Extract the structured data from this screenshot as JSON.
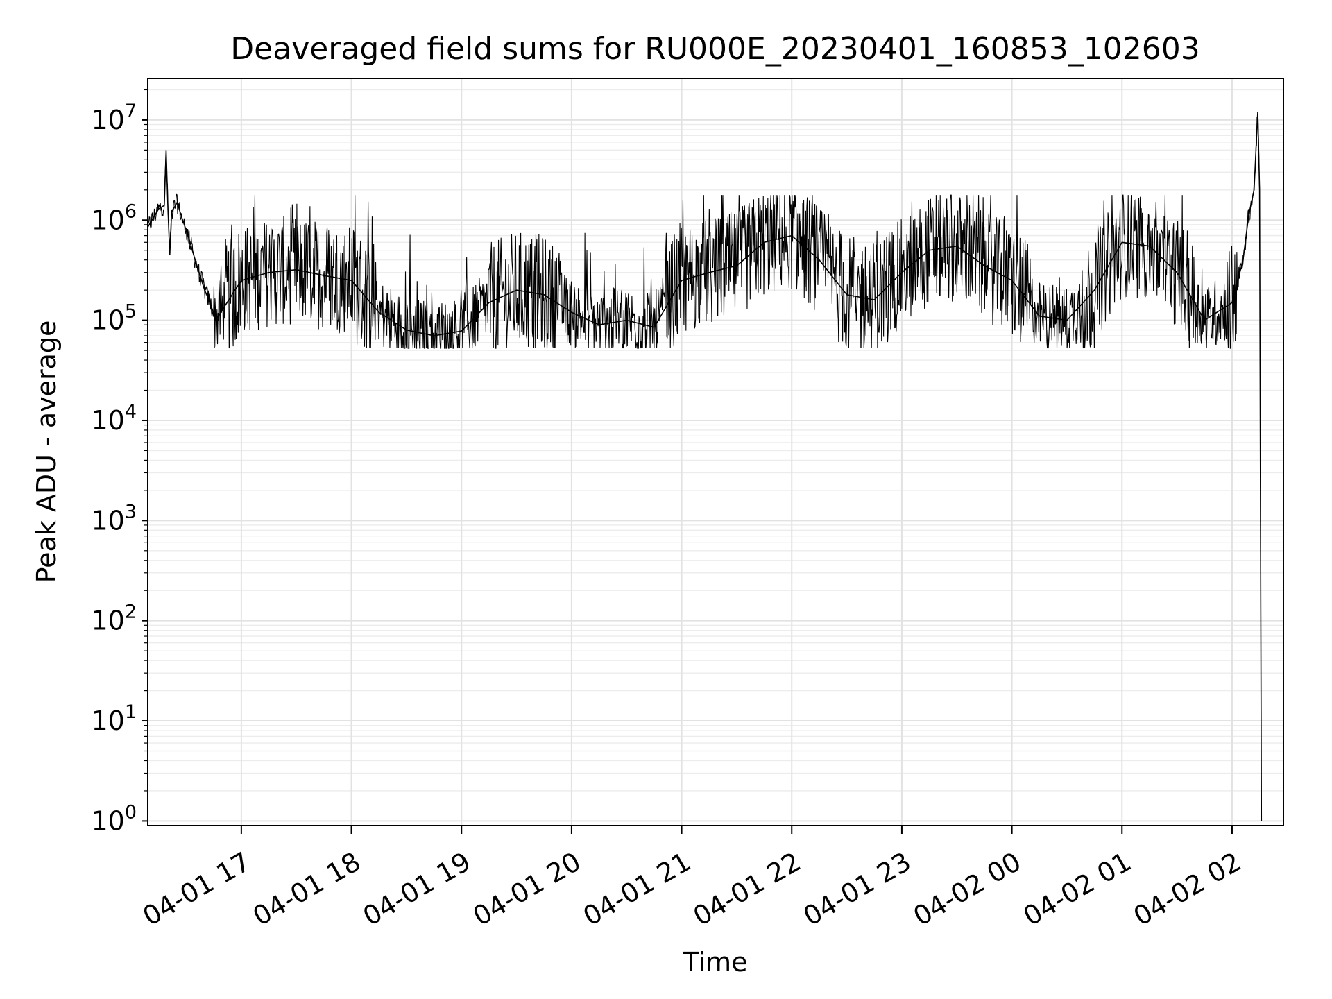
{
  "chart_data": {
    "type": "line",
    "title": "Deaveraged field sums for RU000E_20230401_160853_102603",
    "xlabel": "Time",
    "ylabel": "Peak ADU - average",
    "yscale": "log",
    "ylim": [
      0.9,
      26000000
    ],
    "xlim": [
      "2023-04-01 16:09",
      "2023-04-02 02:28"
    ],
    "grid": true,
    "x_ticks": [
      "04-01 17",
      "04-01 18",
      "04-01 19",
      "04-01 20",
      "04-01 21",
      "04-01 22",
      "04-01 23",
      "04-02 00",
      "04-02 01",
      "04-02 02"
    ],
    "y_ticks": [
      {
        "base": "10",
        "exp": "0"
      },
      {
        "base": "10",
        "exp": "1"
      },
      {
        "base": "10",
        "exp": "2"
      },
      {
        "base": "10",
        "exp": "3"
      },
      {
        "base": "10",
        "exp": "4"
      },
      {
        "base": "10",
        "exp": "5"
      },
      {
        "base": "10",
        "exp": "6"
      },
      {
        "base": "10",
        "exp": "7"
      }
    ],
    "series": [
      {
        "color": "#000000",
        "x": [
          "2023-04-01 16:09",
          "2023-04-01 16:15",
          "2023-04-01 16:18",
          "2023-04-01 16:19",
          "2023-04-01 16:20",
          "2023-04-01 16:21",
          "2023-04-01 16:22",
          "2023-04-01 16:25",
          "2023-04-01 16:28",
          "2023-04-01 16:31",
          "2023-04-01 16:34",
          "2023-04-01 16:37",
          "2023-04-01 16:40",
          "2023-04-01 16:43",
          "2023-04-01 16:46",
          "2023-04-01 17:00",
          "2023-04-01 17:15",
          "2023-04-01 17:30",
          "2023-04-01 17:45",
          "2023-04-01 18:00",
          "2023-04-01 18:15",
          "2023-04-01 18:30",
          "2023-04-01 18:45",
          "2023-04-01 19:00",
          "2023-04-01 19:15",
          "2023-04-01 19:30",
          "2023-04-01 19:45",
          "2023-04-01 20:00",
          "2023-04-01 20:15",
          "2023-04-01 20:30",
          "2023-04-01 20:45",
          "2023-04-01 21:00",
          "2023-04-01 21:15",
          "2023-04-01 21:30",
          "2023-04-01 21:45",
          "2023-04-01 22:00",
          "2023-04-01 22:15",
          "2023-04-01 22:30",
          "2023-04-01 22:45",
          "2023-04-01 23:00",
          "2023-04-01 23:15",
          "2023-04-01 23:30",
          "2023-04-01 23:45",
          "2023-04-02 00:00",
          "2023-04-02 00:15",
          "2023-04-02 00:30",
          "2023-04-02 00:45",
          "2023-04-02 01:00",
          "2023-04-02 01:15",
          "2023-04-02 01:30",
          "2023-04-02 01:45",
          "2023-04-02 02:00",
          "2023-04-02 02:06",
          "2023-04-02 02:09",
          "2023-04-02 02:12",
          "2023-04-02 02:14",
          "2023-04-02 02:15",
          "2023-04-02 02:16"
        ],
        "y": [
          850000,
          1300000,
          1400000,
          5000000,
          1300000,
          450000,
          1200000,
          1500000,
          1000000,
          700000,
          450000,
          300000,
          200000,
          150000,
          100000,
          250000,
          300000,
          320000,
          280000,
          250000,
          120000,
          80000,
          70000,
          78000,
          150000,
          200000,
          180000,
          120000,
          90000,
          100000,
          85000,
          250000,
          300000,
          350000,
          600000,
          700000,
          400000,
          180000,
          160000,
          300000,
          500000,
          550000,
          350000,
          250000,
          110000,
          100000,
          200000,
          600000,
          550000,
          300000,
          100000,
          150000,
          400000,
          1100000,
          2000000,
          12000000,
          2000000,
          1
        ]
      }
    ]
  }
}
